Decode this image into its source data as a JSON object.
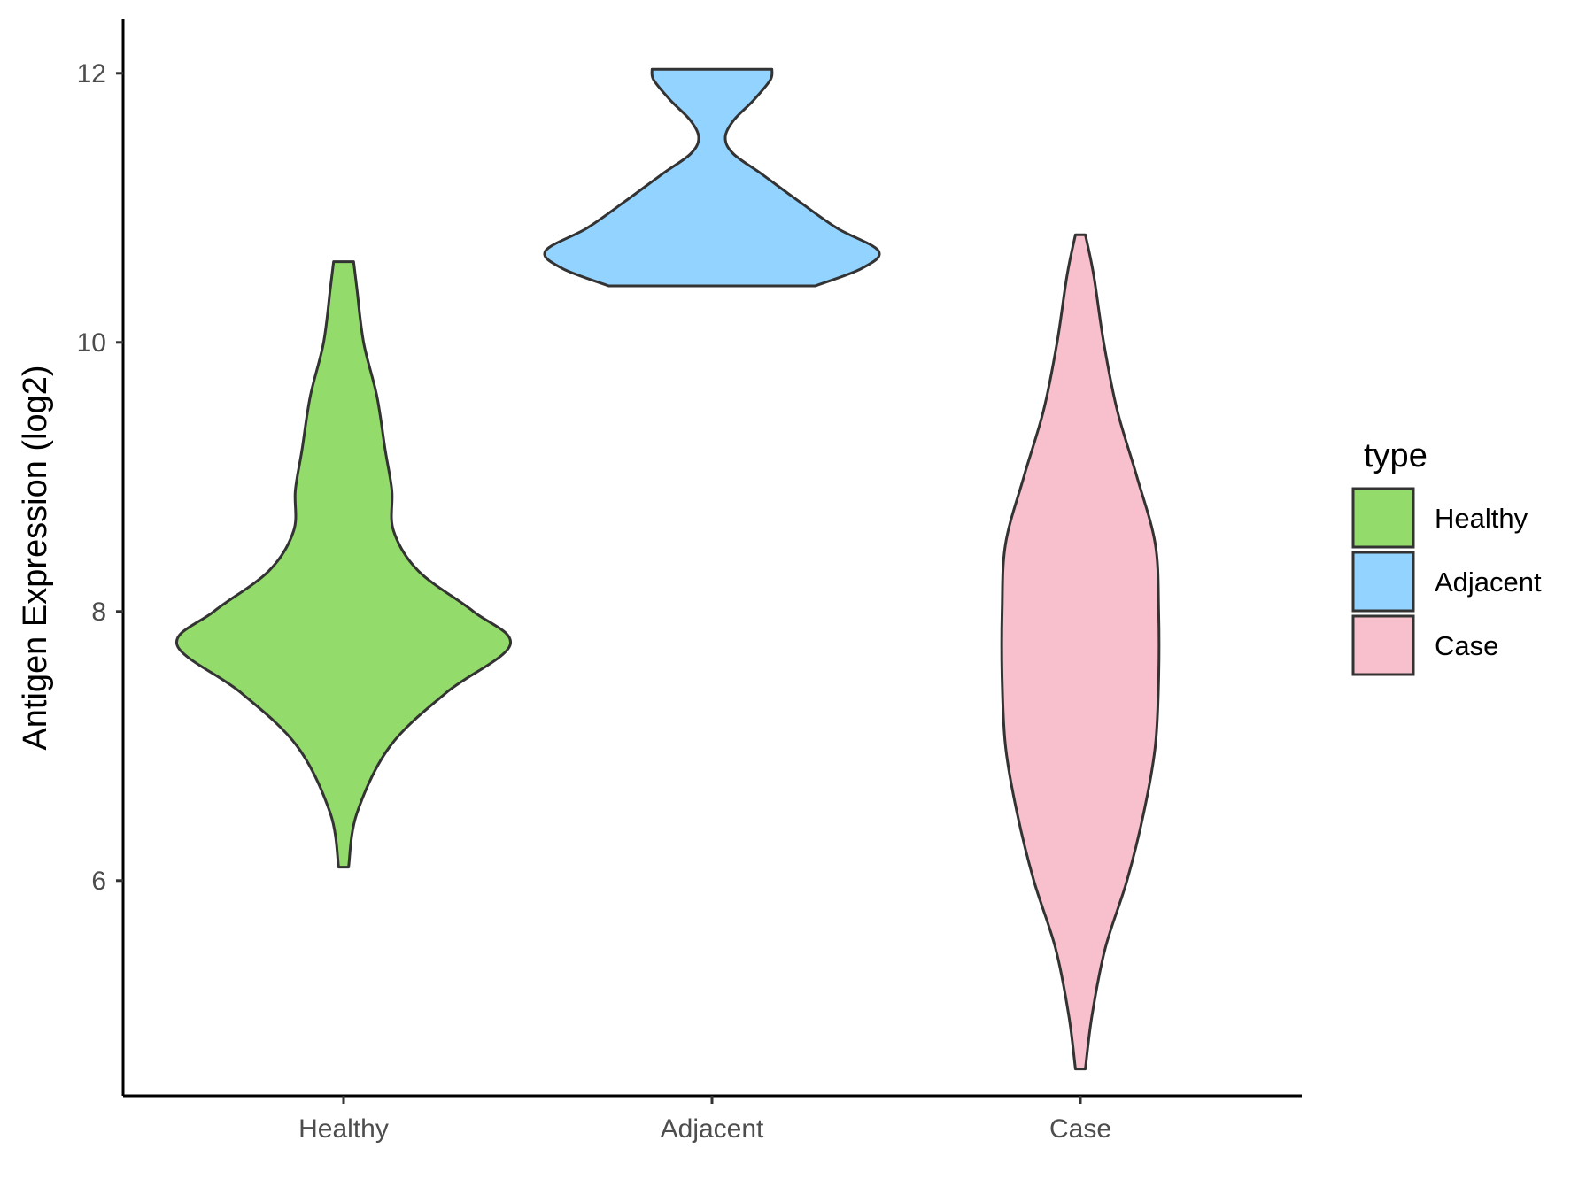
{
  "chart_data": {
    "type": "violin",
    "xlabel": "",
    "ylabel": "Antigen Expression (log2)",
    "ylim": [
      4.4,
      12.4
    ],
    "yticks": [
      6,
      8,
      10,
      12
    ],
    "categories": [
      "Healthy",
      "Adjacent",
      "Case"
    ],
    "grid": false,
    "legend": {
      "title": "type",
      "position": "right"
    },
    "series": [
      {
        "name": "Healthy",
        "color": "#93db6a",
        "min": 6.1,
        "max": 10.6,
        "density": [
          [
            6.1,
            0.03
          ],
          [
            6.5,
            0.08
          ],
          [
            7.0,
            0.28
          ],
          [
            7.4,
            0.62
          ],
          [
            7.75,
            1.0
          ],
          [
            8.0,
            0.78
          ],
          [
            8.3,
            0.45
          ],
          [
            8.6,
            0.3
          ],
          [
            8.9,
            0.29
          ],
          [
            9.2,
            0.25
          ],
          [
            9.6,
            0.2
          ],
          [
            10.0,
            0.12
          ],
          [
            10.4,
            0.08
          ],
          [
            10.6,
            0.06
          ]
        ]
      },
      {
        "name": "Adjacent",
        "color": "#93d3ff",
        "min": 10.42,
        "max": 12.03,
        "density": [
          [
            10.42,
            0.62
          ],
          [
            10.55,
            0.9
          ],
          [
            10.68,
            1.0
          ],
          [
            10.85,
            0.75
          ],
          [
            11.05,
            0.52
          ],
          [
            11.25,
            0.3
          ],
          [
            11.4,
            0.13
          ],
          [
            11.52,
            0.08
          ],
          [
            11.65,
            0.13
          ],
          [
            11.8,
            0.25
          ],
          [
            11.95,
            0.35
          ],
          [
            12.03,
            0.36
          ]
        ]
      },
      {
        "name": "Case",
        "color": "#f7c0cc",
        "min": 4.6,
        "max": 10.8,
        "density": [
          [
            4.6,
            0.03
          ],
          [
            5.0,
            0.07
          ],
          [
            5.5,
            0.15
          ],
          [
            6.0,
            0.28
          ],
          [
            6.5,
            0.38
          ],
          [
            7.0,
            0.45
          ],
          [
            7.5,
            0.47
          ],
          [
            8.0,
            0.47
          ],
          [
            8.5,
            0.45
          ],
          [
            9.0,
            0.34
          ],
          [
            9.5,
            0.22
          ],
          [
            10.0,
            0.14
          ],
          [
            10.5,
            0.08
          ],
          [
            10.8,
            0.03
          ]
        ]
      }
    ]
  }
}
